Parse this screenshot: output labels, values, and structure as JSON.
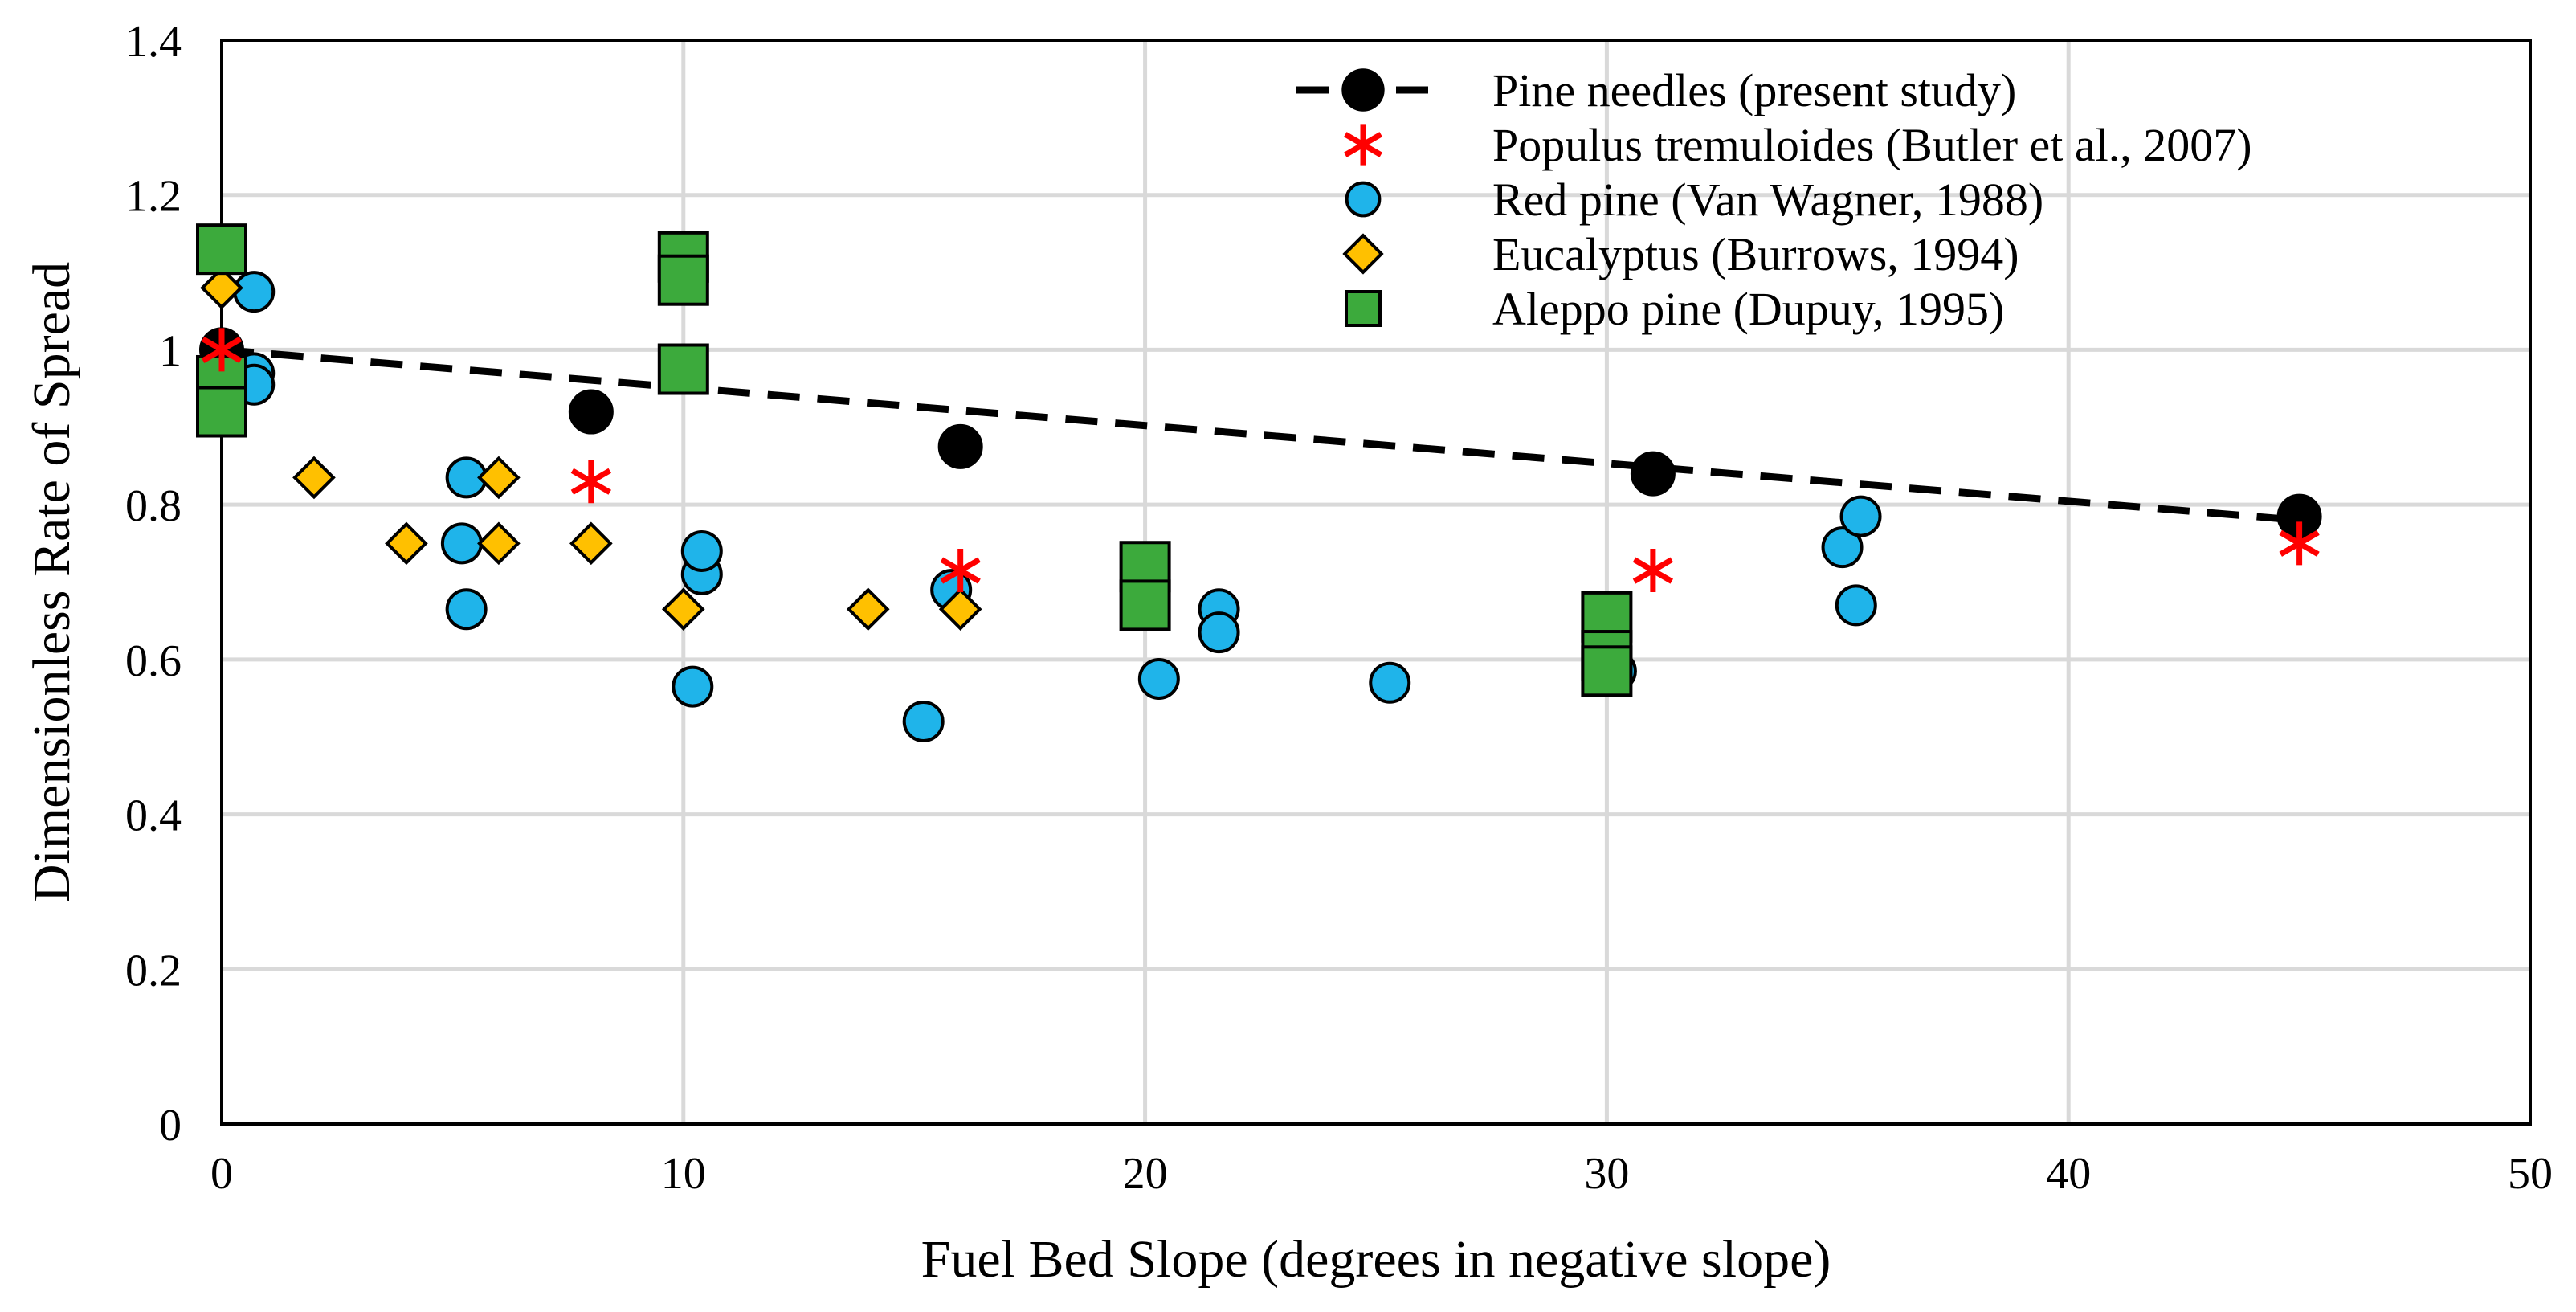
{
  "chart_data": {
    "type": "scatter",
    "title": "",
    "xlabel": "Fuel Bed Slope (degrees in negative slope)",
    "ylabel": "Dimensionless Rate of Spread",
    "xlim": [
      0,
      50
    ],
    "ylim": [
      0,
      1.4
    ],
    "xticks": [
      0,
      10,
      20,
      30,
      40,
      50
    ],
    "yticks": [
      0,
      0.2,
      0.4,
      0.6,
      0.8,
      1,
      1.2,
      1.4
    ],
    "xtick_labels": [
      "0",
      "10",
      "20",
      "30",
      "40",
      "50"
    ],
    "ytick_labels": [
      "0",
      "0.2",
      "0.4",
      "0.6",
      "0.8",
      "1",
      "1.2",
      "1.4"
    ],
    "grid": true,
    "legend_position": "top-right",
    "series": [
      {
        "name": "Pine needles (present study)",
        "marker": "circle",
        "line": "dashed-fit",
        "color": "#000000",
        "points": [
          [
            0,
            1.0
          ],
          [
            8,
            0.92
          ],
          [
            16,
            0.875
          ],
          [
            31,
            0.84
          ],
          [
            45,
            0.785
          ]
        ],
        "trendline": [
          [
            0,
            1.0
          ],
          [
            45,
            0.78
          ]
        ]
      },
      {
        "name": "Populus tremuloides (Butler et al., 2007)",
        "marker": "asterisk",
        "color": "#ff0000",
        "points": [
          [
            0,
            1.0
          ],
          [
            8,
            0.83
          ],
          [
            16,
            0.715
          ],
          [
            31,
            0.715
          ],
          [
            45,
            0.75
          ]
        ]
      },
      {
        "name": "Red pine (Van Wagner, 1988)",
        "marker": "circle",
        "color": "#1fb4ea",
        "points": [
          [
            0.7,
            1.075
          ],
          [
            0.7,
            0.97
          ],
          [
            0.7,
            0.955
          ],
          [
            5.3,
            0.835
          ],
          [
            5.2,
            0.75
          ],
          [
            5.3,
            0.665
          ],
          [
            10.2,
            0.565
          ],
          [
            10.4,
            0.71
          ],
          [
            10.4,
            0.74
          ],
          [
            15.2,
            0.52
          ],
          [
            15.8,
            0.69
          ],
          [
            20.3,
            0.575
          ],
          [
            21.6,
            0.665
          ],
          [
            21.6,
            0.635
          ],
          [
            25.3,
            0.57
          ],
          [
            30.2,
            0.585
          ],
          [
            35.1,
            0.745
          ],
          [
            35.5,
            0.785
          ],
          [
            35.4,
            0.67
          ]
        ]
      },
      {
        "name": "Eucalyptus (Burrows, 1994)",
        "marker": "diamond",
        "color": "#ffc000",
        "points": [
          [
            0,
            1.08
          ],
          [
            2,
            0.835
          ],
          [
            4,
            0.75
          ],
          [
            6,
            0.835
          ],
          [
            6,
            0.75
          ],
          [
            8,
            0.75
          ],
          [
            10,
            0.665
          ],
          [
            14,
            0.665
          ],
          [
            16,
            0.665
          ]
        ]
      },
      {
        "name": "Aleppo pine (Dupuy, 1995)",
        "marker": "square",
        "color": "#3caa3c",
        "points": [
          [
            0,
            1.13
          ],
          [
            0,
            0.96
          ],
          [
            0,
            0.92
          ],
          [
            10,
            1.12
          ],
          [
            10,
            1.09
          ],
          [
            10,
            0.975
          ],
          [
            20,
            0.72
          ],
          [
            20,
            0.67
          ],
          [
            30,
            0.655
          ],
          [
            30,
            0.605
          ],
          [
            30,
            0.585
          ]
        ]
      }
    ]
  }
}
